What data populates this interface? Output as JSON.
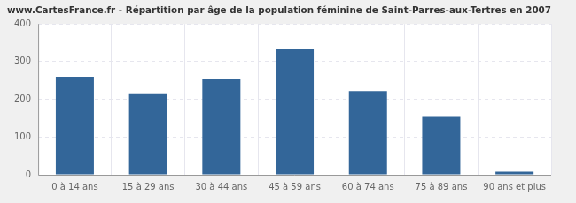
{
  "chart_data": {
    "type": "bar",
    "title": "www.CartesFrance.fr - Répartition par âge de la population féminine de Saint-Parres-aux-Tertres en 2007",
    "categories": [
      "0 à 14 ans",
      "15 à 29 ans",
      "30 à 44 ans",
      "45 à 59 ans",
      "60 à 74 ans",
      "75 à 89 ans",
      "90 ans et plus"
    ],
    "values": [
      260,
      216,
      254,
      335,
      222,
      156,
      8
    ],
    "color": "#336699",
    "ylim": [
      0,
      400
    ],
    "yticks": [
      0,
      100,
      200,
      300,
      400
    ],
    "grid": true
  }
}
